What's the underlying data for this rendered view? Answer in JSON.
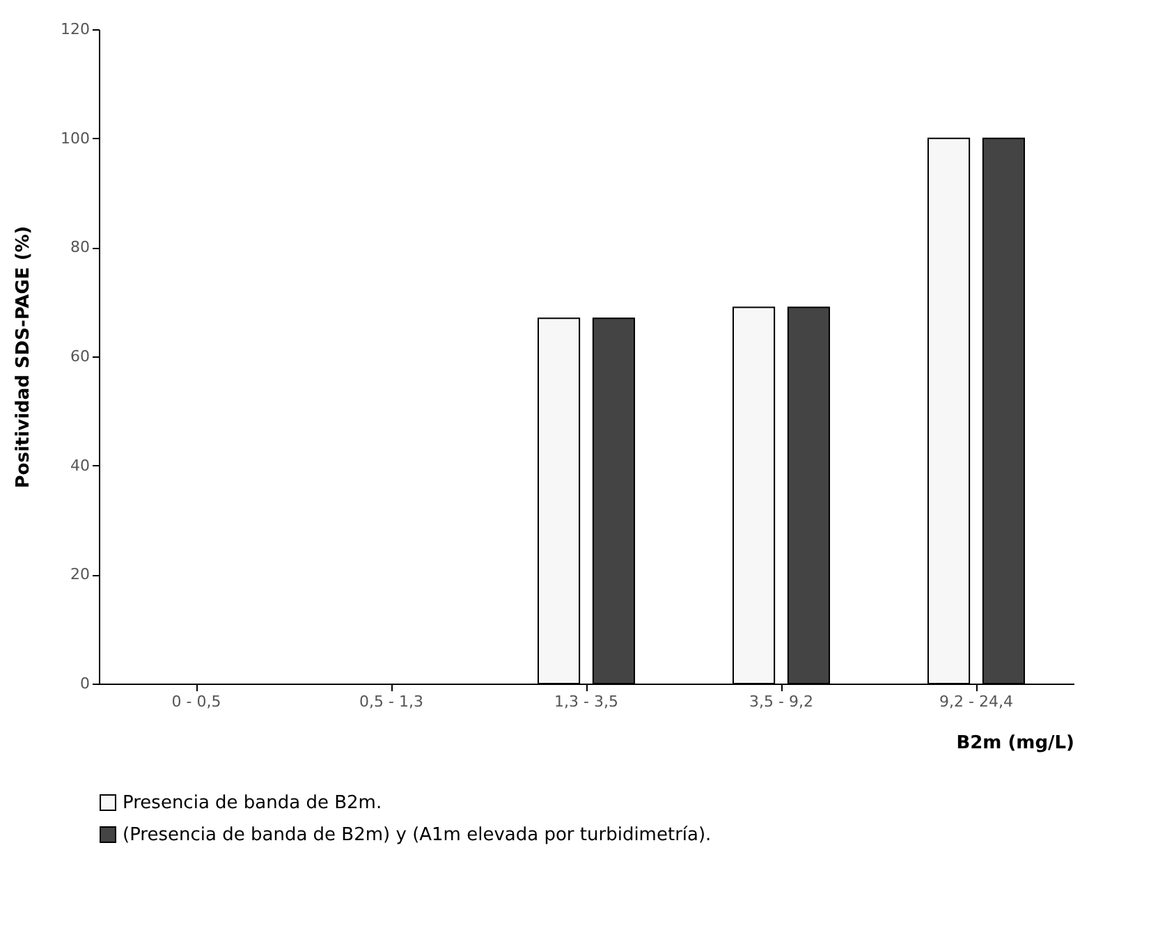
{
  "chart_data": {
    "type": "bar",
    "xlabel": "B2m (mg/L)",
    "ylabel": "Positividad SDS-PAGE (%)",
    "categories": [
      "0 - 0,5",
      "0,5 - 1,3",
      "1,3 - 3,5",
      "3,5 - 9,2",
      "9,2 - 24,4"
    ],
    "series": [
      {
        "name": "Presencia de banda de B2m.",
        "color": "#f7f7f7",
        "values": [
          0,
          0,
          67,
          69,
          100
        ]
      },
      {
        "name": "(Presencia de banda de B2m) y (A1m elevada por turbidimetría).",
        "color": "#444444",
        "values": [
          0,
          0,
          67,
          69,
          100
        ]
      }
    ],
    "ylim": [
      0,
      120
    ],
    "yticks": [
      0,
      20,
      40,
      60,
      80,
      100,
      120
    ],
    "grid": false,
    "legend": "bottom"
  }
}
